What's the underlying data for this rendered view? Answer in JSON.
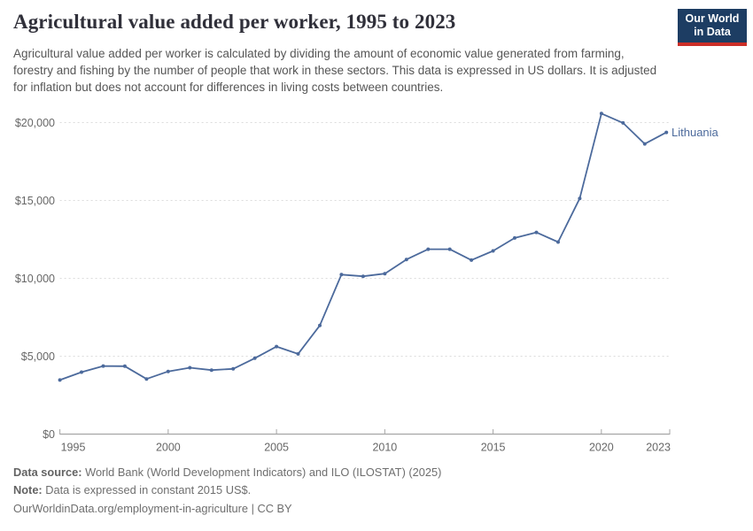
{
  "header": {
    "title": "Agricultural value added per worker, 1995 to 2023",
    "subtitle": "Agricultural value added per worker is calculated by dividing the amount of economic value generated from farming, forestry and fishing by the number of people that work in these sectors. This data is expressed in US dollars. It is adjusted for inflation but does not account for differences in living costs between countries.",
    "logo_line1": "Our World",
    "logo_line2": "in Data"
  },
  "footer": {
    "source_label": "Data source:",
    "source_text": "World Bank (World Development Indicators) and ILO (ILOSTAT) (2025)",
    "note_label": "Note:",
    "note_text": "Data is expressed in constant 2015 US$.",
    "link": "OurWorldinData.org/employment-in-agriculture | CC BY"
  },
  "colors": {
    "line": "#4c6a9c",
    "grid": "#dcdcdc",
    "axis": "#a5a5a5",
    "logo_navy": "#1d3d63",
    "logo_red": "#cc2e27"
  },
  "chart_data": {
    "type": "line",
    "title": "Agricultural value added per worker, 1995 to 2023",
    "entity": "Lithuania",
    "unit": "constant 2015 US$",
    "x": [
      1995,
      1996,
      1997,
      1998,
      1999,
      2000,
      2001,
      2002,
      2003,
      2004,
      2005,
      2006,
      2007,
      2008,
      2009,
      2010,
      2011,
      2012,
      2013,
      2014,
      2015,
      2016,
      2017,
      2018,
      2019,
      2020,
      2021,
      2022,
      2023
    ],
    "values": [
      3470,
      3980,
      4370,
      4360,
      3540,
      4020,
      4260,
      4110,
      4190,
      4870,
      5620,
      5150,
      6970,
      10240,
      10130,
      10300,
      11210,
      11870,
      11870,
      11170,
      11760,
      12590,
      12950,
      12330,
      15130,
      20580,
      19980,
      18630,
      19370
    ],
    "ylim": [
      0,
      21000
    ],
    "yticks": [
      0,
      5000,
      10000,
      15000,
      20000
    ],
    "ytick_labels": [
      "$0",
      "$5,000",
      "$10,000",
      "$15,000",
      "$20,000"
    ],
    "xticks": [
      1995,
      2000,
      2005,
      2010,
      2015,
      2020,
      2023
    ],
    "xtick_labels": [
      "1995",
      "2000",
      "2005",
      "2010",
      "2015",
      "2020",
      "2023"
    ],
    "grid": "horizontal-dashed",
    "legend": "entity label at line end",
    "line_color": "#4c6a9c"
  }
}
